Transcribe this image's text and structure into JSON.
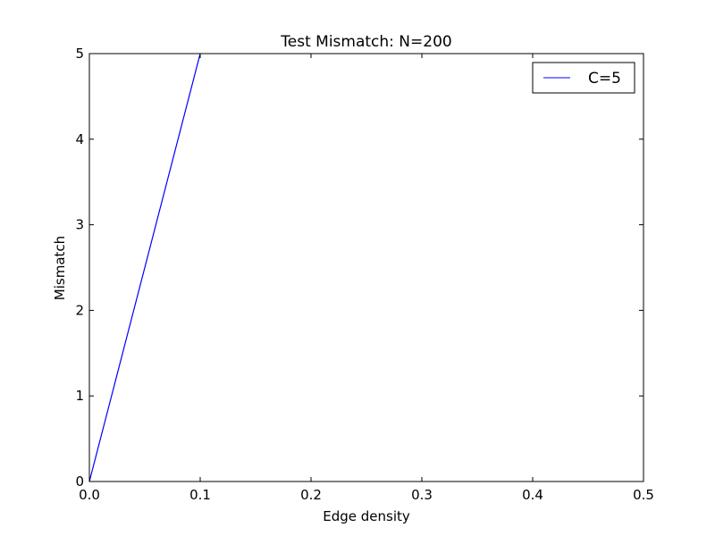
{
  "chart_data": {
    "type": "line",
    "title": "Test Mismatch: N=200",
    "xlabel": "Edge density",
    "ylabel": "Mismatch",
    "xlim": [
      0.0,
      0.5
    ],
    "ylim": [
      0,
      5
    ],
    "xticks": [
      0.0,
      0.1,
      0.2,
      0.3,
      0.4,
      0.5
    ],
    "xtick_labels": [
      "0.0",
      "0.1",
      "0.2",
      "0.3",
      "0.4",
      "0.5"
    ],
    "yticks": [
      0,
      1,
      2,
      3,
      4,
      5
    ],
    "ytick_labels": [
      "0",
      "1",
      "2",
      "3",
      "4",
      "5"
    ],
    "grid": false,
    "legend_position": "top-right",
    "series": [
      {
        "name": "C=5",
        "color": "#0000ff",
        "x": [
          0.0,
          0.1,
          0.101
        ],
        "y": [
          0.0,
          5.0,
          5.1
        ]
      }
    ]
  }
}
